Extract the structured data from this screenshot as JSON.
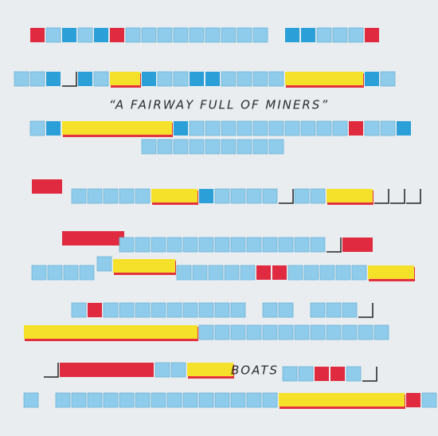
{
  "header": {
    "title": "“A FAIRWAY FULL OF MINERS”"
  },
  "label": {
    "text": "BOATS"
  }
}
